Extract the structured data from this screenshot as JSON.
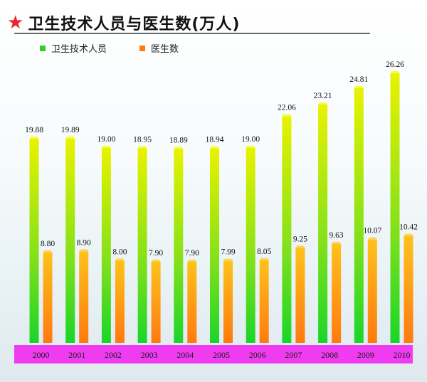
{
  "header": {
    "title": "卫生技术人员与医生数(万人)",
    "star_icon": "star-icon"
  },
  "colors": {
    "series1_top": "#e8f200",
    "series1_bottom": "#19d52a",
    "series2_top": "#ffc21a",
    "series2_bottom": "#ff7a10",
    "axis_band": "#f03cf0",
    "title_star": "#e8262c"
  },
  "chart_data": {
    "type": "bar",
    "title": "卫生技术人员与医生数(万人)",
    "categories": [
      "2000",
      "2001",
      "2002",
      "2003",
      "2004",
      "2005",
      "2006",
      "2007",
      "2008",
      "2009",
      "2010"
    ],
    "series": [
      {
        "name": "卫生技术人员",
        "values": [
          19.88,
          19.89,
          19.0,
          18.95,
          18.89,
          18.94,
          19.0,
          22.06,
          23.21,
          24.81,
          26.26
        ]
      },
      {
        "name": "医生数",
        "values": [
          8.8,
          8.9,
          8.0,
          7.9,
          7.9,
          7.99,
          8.05,
          9.25,
          9.63,
          10.07,
          10.42
        ]
      }
    ],
    "value_labels": [
      [
        "19.88",
        "19.89",
        "19.00",
        "18.95",
        "18.89",
        "18.94",
        "19.00",
        "22.06",
        "23.21",
        "24.81",
        "26.26"
      ],
      [
        "8.80",
        "8.90",
        "8.00",
        "7.90",
        "7.90",
        "7.99",
        "8.05",
        "9.25",
        "9.63",
        "10.07",
        "10.42"
      ]
    ],
    "ylim": [
      0,
      27
    ],
    "legend_position": "top-left",
    "grid": false
  }
}
